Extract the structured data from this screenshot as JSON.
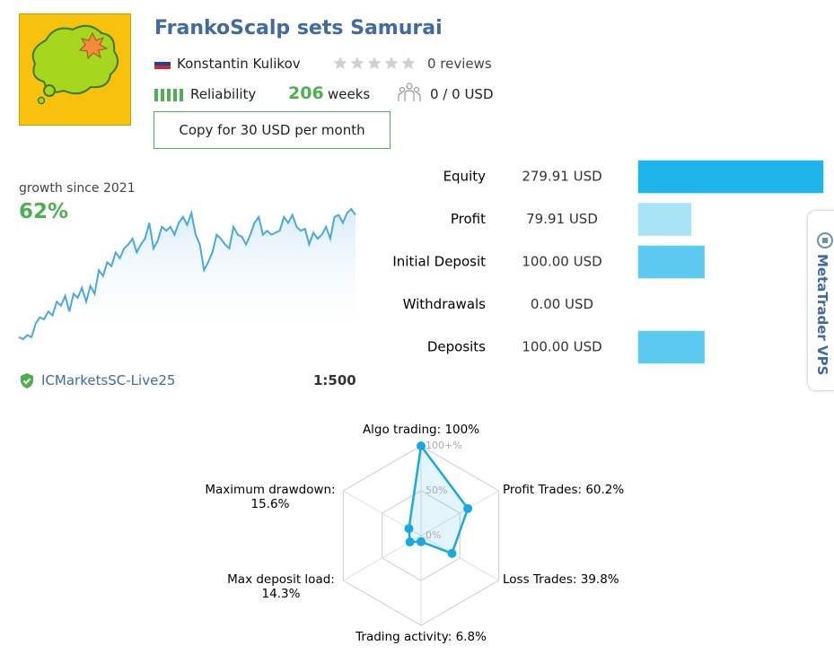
{
  "header": {
    "title": "FrankoScalp sets Samurai",
    "author": "Konstantin Kulikov",
    "reviews": "0 reviews",
    "reliability": "Reliability",
    "weeks": "206",
    "weeks_unit": "weeks",
    "subscribers": "0 / 0 USD",
    "copy_button": "Copy for 30 USD per month"
  },
  "growth": {
    "caption": "growth since 2021",
    "value": "62%",
    "chart": {
      "type": "line",
      "color": "#4aa8dc",
      "values": [
        0,
        -1,
        1,
        0,
        7,
        10,
        9,
        13,
        11,
        18,
        16,
        21,
        13,
        22,
        20,
        25,
        18,
        26,
        22,
        34,
        31,
        38,
        36,
        43,
        40,
        45,
        47,
        50,
        43,
        47,
        50,
        58,
        45,
        49,
        56,
        54,
        56,
        52,
        58,
        61,
        57,
        63,
        52,
        47,
        34,
        38,
        43,
        52,
        50,
        47,
        45,
        56,
        52,
        51,
        47,
        52,
        58,
        61,
        52,
        54,
        52,
        53,
        54,
        61,
        58,
        62,
        56,
        54,
        55,
        47,
        53,
        50,
        52,
        56,
        50,
        61,
        62,
        58,
        63,
        65,
        62
      ]
    }
  },
  "account": {
    "broker": "ICMarketsSC-Live25",
    "leverage": "1:500"
  },
  "stats": {
    "type": "bar",
    "categories": [
      "Equity",
      "Profit",
      "Initial Deposit",
      "Withdrawals",
      "Deposits"
    ],
    "values": [
      279.91,
      79.91,
      100.0,
      0.0,
      100.0
    ],
    "value_labels": [
      "279.91 USD",
      "79.91 USD",
      "100.00 USD",
      "0.00 USD",
      "100.00 USD"
    ],
    "colors": [
      "#1eb4ec",
      "#a8e4f8",
      "#5ccaf0",
      "#a8e4f8",
      "#5ccaf0"
    ]
  },
  "radar": {
    "type": "radar",
    "color": "#1aa8e0",
    "axes": [
      {
        "lines": [
          "Algo trading: 100%"
        ],
        "value": 100
      },
      {
        "lines": [
          "Profit Trades: 60.2%"
        ],
        "value": 60.2
      },
      {
        "lines": [
          "Loss Trades: 39.8%"
        ],
        "value": 39.8
      },
      {
        "lines": [
          "Trading activity: 6.8%"
        ],
        "value": 6.8
      },
      {
        "lines": [
          "Max deposit load:",
          "14.3%"
        ],
        "value": 14.3
      },
      {
        "lines": [
          "Maximum drawdown:",
          "15.6%"
        ],
        "value": 15.6
      }
    ],
    "rticks": [
      {
        "value": 100,
        "label": "100+%"
      },
      {
        "value": 50,
        "label": "50%"
      },
      {
        "value": 0,
        "label": "0%"
      }
    ]
  },
  "side_tab": "MetaTrader VPS"
}
